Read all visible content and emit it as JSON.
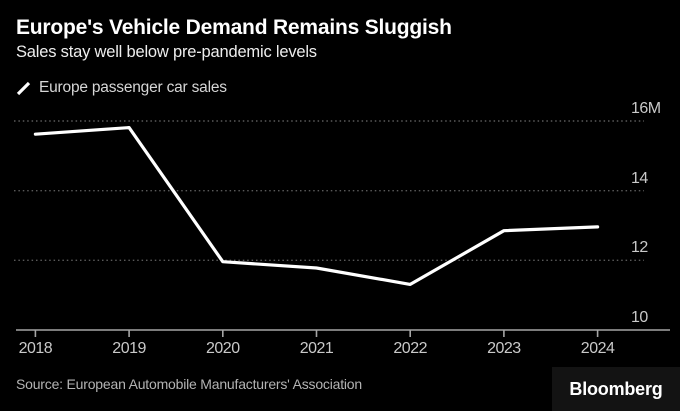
{
  "header": {
    "title": "Europe's Vehicle Demand Remains Sluggish",
    "subtitle": "Sales stay well below pre-pandemic levels"
  },
  "legend": {
    "label": "Europe passenger car sales",
    "marker": "line-slash-icon"
  },
  "chart_data": {
    "type": "line",
    "title": "Europe's Vehicle Demand Remains Sluggish",
    "subtitle": "Sales stay well below pre-pandemic levels",
    "unit": "millions of vehicles",
    "x": [
      2018,
      2019,
      2020,
      2021,
      2022,
      2023,
      2024
    ],
    "x_tick_labels": [
      "2018",
      "2019",
      "2020",
      "2021",
      "2022",
      "2023",
      "2024"
    ],
    "series": [
      {
        "name": "Europe passenger car sales",
        "color": "#ffffff",
        "values": [
          15.62,
          15.81,
          11.96,
          11.78,
          11.31,
          12.85,
          12.96
        ]
      }
    ],
    "y_ticks": [
      10,
      12,
      14,
      16
    ],
    "y_tick_labels": [
      "10",
      "12",
      "14",
      "16M"
    ],
    "ylim": [
      10,
      16.5
    ],
    "grid": "horizontal-dotted",
    "y_axis_side": "right",
    "legend_position": "top-left"
  },
  "footer": {
    "source": "Source: European Automobile Manufacturers' Association",
    "brand": "Bloomberg"
  },
  "colors": {
    "background": "#000000",
    "title": "#ffffff",
    "subtitle": "#ededed",
    "legend_text": "#d6d6d6",
    "line": "#ffffff",
    "grid": "#5a5a5a",
    "axis": "#a6a6a6",
    "tick_label": "#c9c9c9",
    "source_text": "#b3b3b3",
    "brand_bg": "#131313",
    "brand_text": "#ffffff"
  }
}
